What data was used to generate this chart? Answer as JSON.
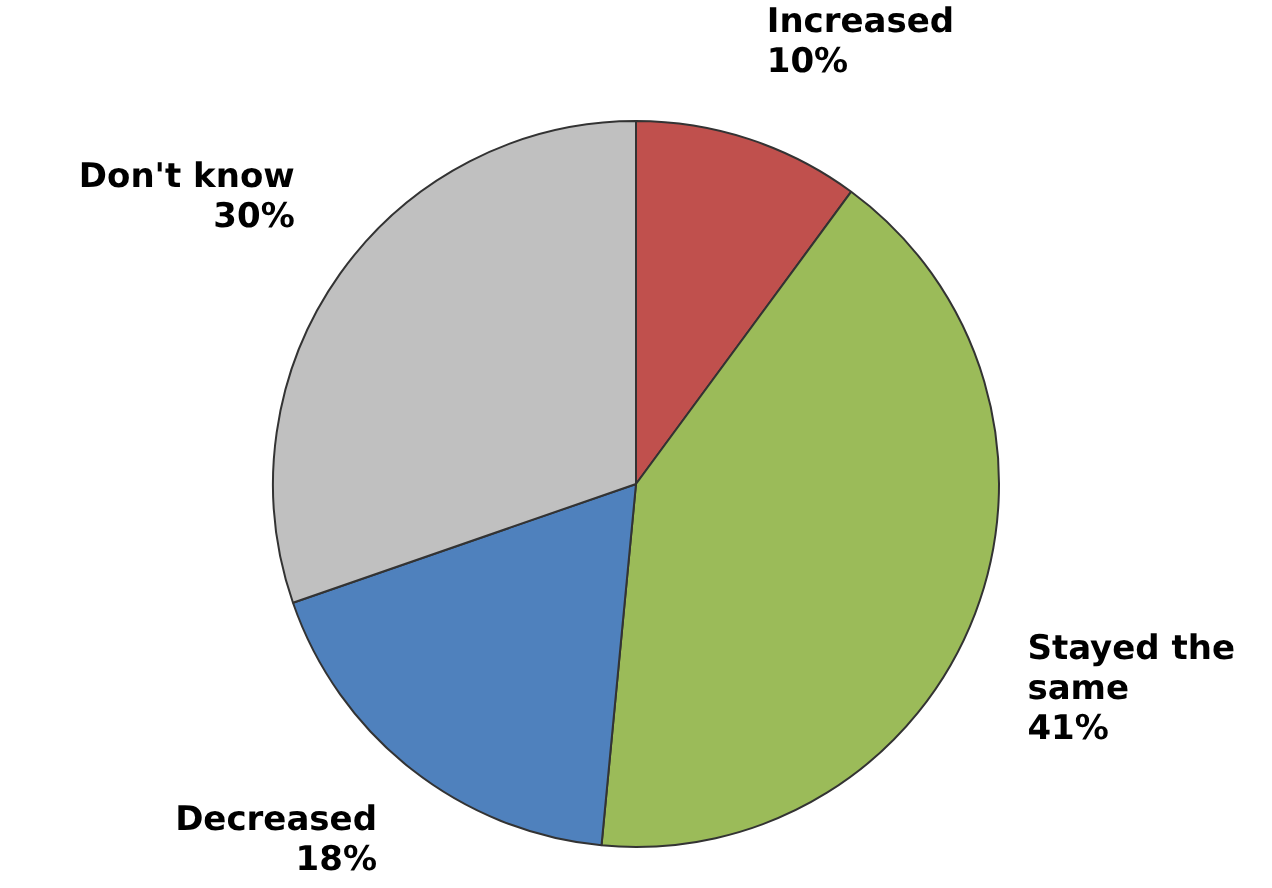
{
  "chart_data": {
    "type": "pie",
    "categories": [
      "Increased",
      "Stayed the same",
      "Decreased",
      "Don't know"
    ],
    "values": [
      10,
      41,
      18,
      30
    ],
    "value_labels": [
      "10%",
      "41%",
      "18%",
      "30%"
    ],
    "colors": [
      "#c0504d",
      "#9bbb59",
      "#4f81bd",
      "#c0c0c0"
    ],
    "legend": false
  }
}
